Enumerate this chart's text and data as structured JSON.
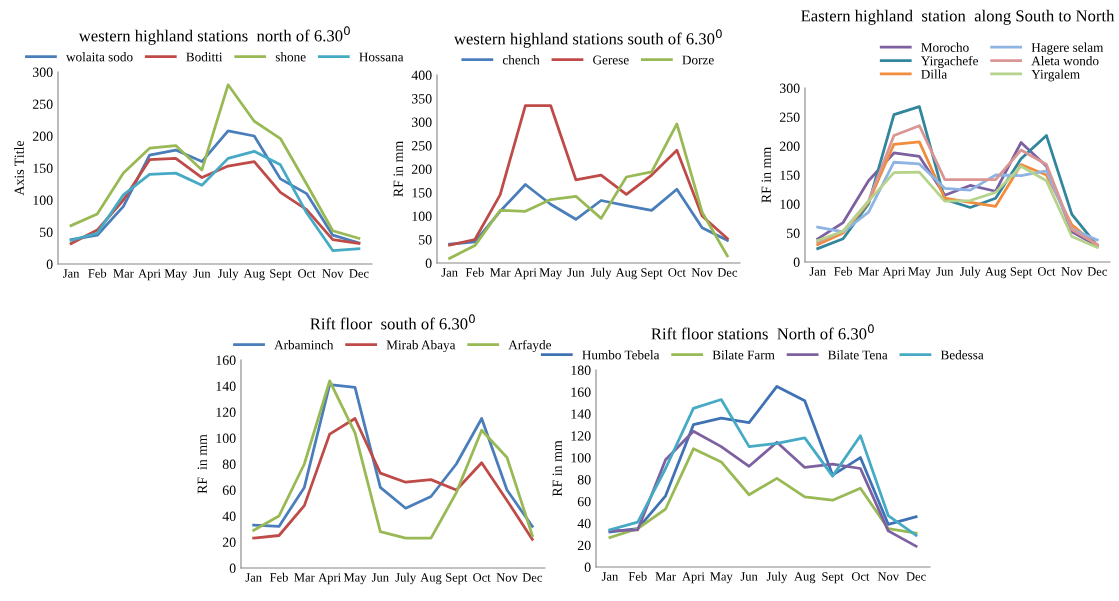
{
  "chart_data": [
    {
      "type": "line",
      "title": "western highland stations  north of 6.30$^{0}$",
      "ylabel": "Axis Title",
      "categories": [
        "Jan",
        "Feb",
        "Mar",
        "Apri",
        "May",
        "Jun",
        "July",
        "Aug",
        "Sept",
        "Oct",
        "Nov",
        "Dec"
      ],
      "ylim": [
        0,
        300
      ],
      "yticks": [
        0,
        50,
        100,
        150,
        200,
        250,
        300
      ],
      "legend": "top",
      "grid": false,
      "series": [
        {
          "name": "wolaita sodo",
          "color": "#4a7ebb",
          "values": [
            38,
            45,
            90,
            170,
            178,
            160,
            208,
            200,
            133,
            110,
            45,
            33
          ]
        },
        {
          "name": "Boditti",
          "color": "#be4b48",
          "values": [
            32,
            53,
            100,
            163,
            165,
            135,
            153,
            160,
            112,
            85,
            38,
            32
          ]
        },
        {
          "name": "shone",
          "color": "#98b954",
          "values": [
            60,
            78,
            142,
            181,
            185,
            147,
            280,
            223,
            196,
            125,
            52,
            40
          ]
        },
        {
          "name": "Hossana",
          "color": "#46aac5",
          "values": [
            37,
            48,
            108,
            140,
            142,
            123,
            165,
            176,
            155,
            80,
            21,
            24
          ]
        }
      ]
    },
    {
      "type": "line",
      "title": "western highland stations south of 6.30$^{0}$",
      "ylabel": "RF in mm",
      "categories": [
        "Jan",
        "Feb",
        "Mar",
        "Apri",
        "May",
        "Jun",
        "July",
        "Aug",
        "Sept",
        "Oct",
        "Nov",
        "Dec"
      ],
      "ylim": [
        0,
        400
      ],
      "yticks": [
        0,
        50,
        100,
        150,
        200,
        250,
        300,
        350,
        400
      ],
      "legend": "top",
      "grid": false,
      "series": [
        {
          "name": "chench",
          "color": "#4a7ebb",
          "values": [
            40,
            45,
            110,
            167,
            125,
            93,
            133,
            122,
            112,
            157,
            75,
            48
          ]
        },
        {
          "name": "Gerese",
          "color": "#be4b48",
          "values": [
            38,
            50,
            145,
            335,
            335,
            177,
            187,
            146,
            187,
            240,
            100,
            52
          ]
        },
        {
          "name": "Dorze",
          "color": "#98b954",
          "values": [
            10,
            37,
            112,
            110,
            135,
            142,
            95,
            183,
            194,
            296,
            108,
            15
          ]
        }
      ]
    },
    {
      "type": "line",
      "title": "Eastern highland  station  along South to North",
      "ylabel": "RF in mm",
      "categories": [
        "Jan",
        "Feb",
        "Mar",
        "Apri",
        "May",
        "Jun",
        "July",
        "Aug",
        "Sept",
        "Oct",
        "Nov",
        "Dec"
      ],
      "ylim": [
        0,
        300
      ],
      "yticks": [
        0,
        50,
        100,
        150,
        200,
        250,
        300
      ],
      "legend": "top right",
      "grid": false,
      "series": [
        {
          "name": "Morocho",
          "color": "#7d60a0",
          "values": [
            40,
            68,
            140,
            188,
            182,
            115,
            132,
            122,
            206,
            165,
            52,
            28
          ]
        },
        {
          "name": "Yirgachefe",
          "color": "#31859c",
          "values": [
            23,
            40,
            100,
            254,
            268,
            108,
            94,
            110,
            178,
            218,
            82,
            28
          ]
        },
        {
          "name": "Dilla",
          "color": "#f08c3c",
          "values": [
            30,
            50,
            103,
            203,
            207,
            110,
            103,
            96,
            168,
            150,
            64,
            28
          ]
        },
        {
          "name": "Hagere selam",
          "color": "#8eb4e3",
          "values": [
            60,
            52,
            86,
            172,
            169,
            127,
            124,
            150,
            149,
            157,
            57,
            38
          ]
        },
        {
          "name": "Aleta wondo",
          "color": "#d99694",
          "values": [
            34,
            53,
            105,
            218,
            235,
            142,
            142,
            142,
            193,
            168,
            56,
            30
          ]
        },
        {
          "name": "Yirgalem",
          "color": "#b5d38a",
          "values": [
            37,
            53,
            105,
            154,
            155,
            105,
            106,
            120,
            165,
            140,
            44,
            25
          ]
        }
      ]
    },
    {
      "type": "line",
      "title": "Rift floor  south of 6.30$^{0}$",
      "ylabel": "RF  in mm",
      "categories": [
        "Jan",
        "Feb",
        "Mar",
        "Apri",
        "May",
        "Jun",
        "July",
        "Aug",
        "Sept",
        "Oct",
        "Nov",
        "Dec"
      ],
      "ylim": [
        0,
        160
      ],
      "yticks": [
        0,
        20,
        40,
        60,
        80,
        100,
        120,
        140,
        160
      ],
      "legend": "top",
      "grid": false,
      "series": [
        {
          "name": "Arbaminch",
          "color": "#4a7ebb",
          "values": [
            33,
            32,
            62,
            141,
            139,
            62,
            46,
            55,
            80,
            115,
            60,
            32
          ]
        },
        {
          "name": "Mirab Abaya",
          "color": "#be4b48",
          "values": [
            23,
            25,
            48,
            103,
            115,
            73,
            66,
            68,
            60,
            81,
            52,
            22
          ]
        },
        {
          "name": "Arfayde",
          "color": "#98b954",
          "values": [
            29,
            40,
            80,
            144,
            104,
            28,
            23,
            23,
            58,
            106,
            85,
            25
          ]
        }
      ]
    },
    {
      "type": "line",
      "title": "Rift floor stations  North of 6.30$^{0}$",
      "ylabel": "RF in mm",
      "categories": [
        "Jan",
        "Feb",
        "Mar",
        "Apri",
        "May",
        "Jun",
        "July",
        "Aug",
        "Sept",
        "Oct",
        "Nov",
        "Dec"
      ],
      "ylim": [
        0,
        180
      ],
      "yticks": [
        0,
        20,
        40,
        60,
        80,
        100,
        120,
        140,
        160,
        180
      ],
      "legend": "top",
      "grid": false,
      "series": [
        {
          "name": "Humbo Tebela",
          "color": "#3f72b5",
          "values": [
            32,
            35,
            65,
            130,
            136,
            132,
            165,
            152,
            84,
            100,
            39,
            46
          ]
        },
        {
          "name": "Bilate Farm",
          "color": "#98b954",
          "values": [
            27,
            35,
            53,
            108,
            96,
            66,
            81,
            64,
            61,
            72,
            35,
            31
          ]
        },
        {
          "name": "Bilate Tena",
          "color": "#7d60a0",
          "values": [
            33,
            34,
            98,
            124,
            110,
            92,
            114,
            91,
            94,
            90,
            33,
            19
          ]
        },
        {
          "name": "Bedessa",
          "color": "#46aac5",
          "values": [
            34,
            41,
            90,
            145,
            153,
            110,
            113,
            118,
            83,
            120,
            47,
            29
          ]
        }
      ]
    }
  ]
}
